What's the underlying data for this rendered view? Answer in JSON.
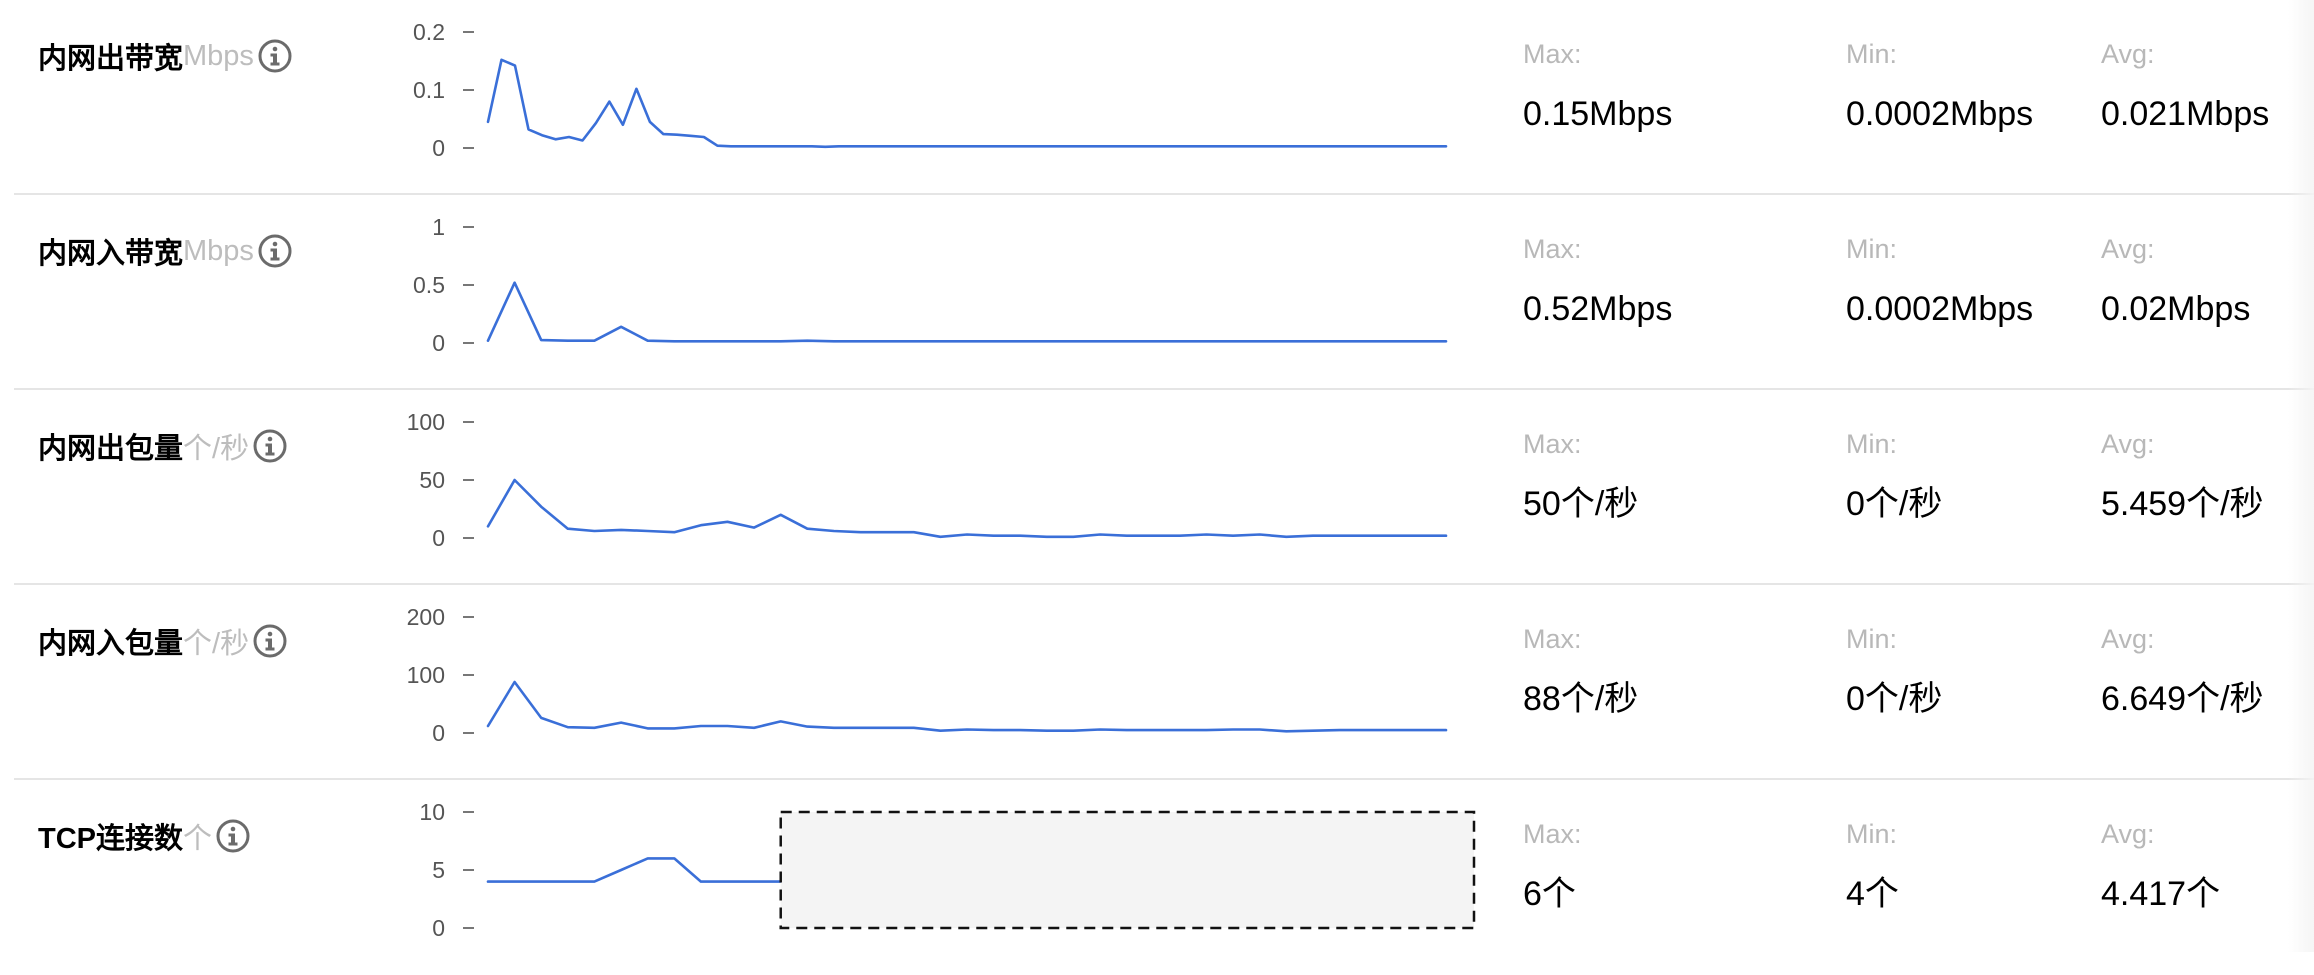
{
  "accent_color": "#3a6fd8",
  "stat_labels": {
    "max": "Max:",
    "min": "Min:",
    "avg": "Avg:"
  },
  "icons": {
    "info": "info-circle-icon"
  },
  "metrics": [
    {
      "key": "outbound-bandwidth",
      "name": "内网出带宽",
      "unit": "Mbps",
      "max": "0.15Mbps",
      "min": "0.0002Mbps",
      "avg": "0.021Mbps"
    },
    {
      "key": "inbound-bandwidth",
      "name": "内网入带宽",
      "unit": "Mbps",
      "max": "0.52Mbps",
      "min": "0.0002Mbps",
      "avg": "0.02Mbps"
    },
    {
      "key": "outbound-packets",
      "name": "内网出包量",
      "unit": "个/秒",
      "max": "50个/秒",
      "min": "0个/秒",
      "avg": "5.459个/秒"
    },
    {
      "key": "inbound-packets",
      "name": "内网入包量",
      "unit": "个/秒",
      "max": "88个/秒",
      "min": "0个/秒",
      "avg": "6.649个/秒"
    },
    {
      "key": "tcp-connections",
      "name": "TCP连接数",
      "unit": "个",
      "max": "6个",
      "min": "4个",
      "avg": "4.417个"
    }
  ],
  "chart_data": [
    {
      "type": "line",
      "ylim": [
        0,
        0.2
      ],
      "yticks": [
        "0.2",
        "0.1",
        "0"
      ],
      "ytick_values": [
        0.2,
        0.1,
        0
      ],
      "values": [
        0.045,
        0.152,
        0.142,
        0.032,
        0.022,
        0.015,
        0.019,
        0.013,
        0.043,
        0.08,
        0.04,
        0.102,
        0.045,
        0.024,
        0.023,
        0.021,
        0.019,
        0.004,
        0.003,
        0.003,
        0.003,
        0.003,
        0.003,
        0.003,
        0.003,
        0.002,
        0.003,
        0.003,
        0.003,
        0.003,
        0.003,
        0.003,
        0.003,
        0.003,
        0.003,
        0.003,
        0.003,
        0.003,
        0.003,
        0.003,
        0.003,
        0.003,
        0.003,
        0.003,
        0.003,
        0.003,
        0.003,
        0.003,
        0.003,
        0.003,
        0.003,
        0.003,
        0.003,
        0.003,
        0.003,
        0.003,
        0.003,
        0.003,
        0.003,
        0.003,
        0.003,
        0.003,
        0.003,
        0.003,
        0.003,
        0.003,
        0.003,
        0.003,
        0.003,
        0.003,
        0.003,
        0.003
      ]
    },
    {
      "type": "line",
      "ylim": [
        0,
        1
      ],
      "yticks": [
        "1",
        "0.5",
        "0"
      ],
      "ytick_values": [
        1,
        0.5,
        0
      ],
      "values": [
        0.02,
        0.52,
        0.025,
        0.02,
        0.02,
        0.14,
        0.02,
        0.015,
        0.015,
        0.015,
        0.015,
        0.015,
        0.02,
        0.015,
        0.015,
        0.015,
        0.015,
        0.015,
        0.015,
        0.015,
        0.015,
        0.015,
        0.015,
        0.015,
        0.015,
        0.015,
        0.015,
        0.015,
        0.015,
        0.015,
        0.015,
        0.015,
        0.015,
        0.015,
        0.015,
        0.015,
        0.015
      ]
    },
    {
      "type": "line",
      "ylim": [
        0,
        100
      ],
      "yticks": [
        "100",
        "50",
        "0"
      ],
      "ytick_values": [
        100,
        50,
        0
      ],
      "values": [
        10,
        50,
        27,
        8,
        6,
        7,
        6,
        5,
        11,
        14,
        9,
        20,
        8,
        6,
        5,
        5,
        5,
        1,
        3,
        2,
        2,
        1,
        1,
        3,
        2,
        2,
        2,
        3,
        2,
        3,
        1,
        2,
        2,
        2,
        2,
        2,
        2
      ]
    },
    {
      "type": "line",
      "ylim": [
        0,
        200
      ],
      "yticks": [
        "200",
        "100",
        "0"
      ],
      "ytick_values": [
        200,
        100,
        0
      ],
      "values": [
        12,
        88,
        26,
        10,
        9,
        18,
        8,
        8,
        12,
        12,
        9,
        20,
        11,
        9,
        9,
        9,
        9,
        4,
        6,
        5,
        5,
        4,
        4,
        6,
        5,
        5,
        5,
        5,
        6,
        6,
        3,
        4,
        5,
        5,
        5,
        5,
        5
      ]
    },
    {
      "type": "line",
      "ylim": [
        0,
        10
      ],
      "yticks": [
        "10",
        "5",
        "0"
      ],
      "ytick_values": [
        10,
        5,
        0
      ],
      "values": [
        4,
        4,
        4,
        4,
        4,
        5,
        6,
        6,
        4,
        4,
        4,
        4
      ],
      "no_data_after_index": 11
    }
  ]
}
